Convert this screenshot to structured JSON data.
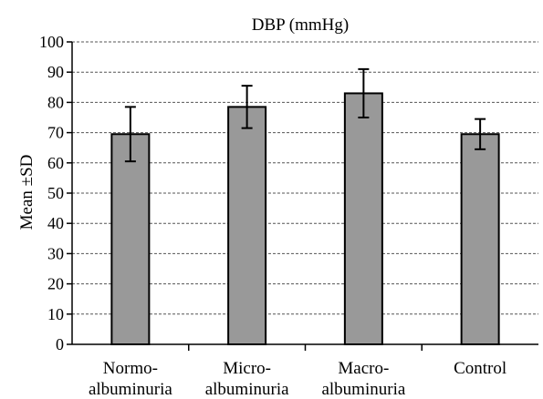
{
  "chart_data": {
    "type": "bar",
    "title": "DBP (mmHg)",
    "ylabel": "Mean ±SD",
    "xlabel": "",
    "categories": [
      [
        "Normo-",
        "albuminuria"
      ],
      [
        "Micro-",
        "albuminuria"
      ],
      [
        "Macro-",
        "albuminuria"
      ],
      [
        "Control"
      ]
    ],
    "values": [
      69.5,
      78.5,
      83.0,
      69.5
    ],
    "errors": [
      9.0,
      7.0,
      8.0,
      5.0
    ],
    "ylim": [
      0,
      100
    ],
    "yticks": [
      0,
      10,
      20,
      30,
      40,
      50,
      60,
      70,
      80,
      90,
      100
    ],
    "grid": true,
    "bar_color": "#999999",
    "legend": "none"
  }
}
